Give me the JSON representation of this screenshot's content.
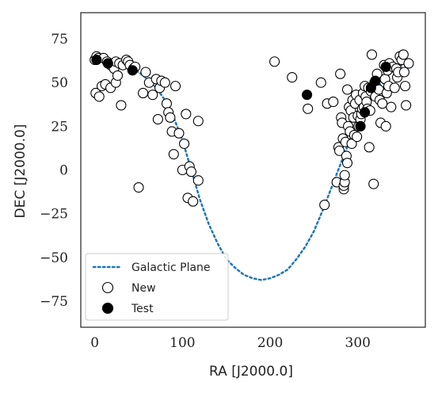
{
  "chart_data": {
    "type": "scatter",
    "xlabel": "RA [J2000.0]",
    "ylabel": "DEC [J2000.0]",
    "xlim": [
      -16,
      377
    ],
    "ylim": [
      -90,
      90
    ],
    "xticks": [
      0,
      100,
      200,
      300
    ],
    "yticks": [
      -75,
      -50,
      -25,
      0,
      25,
      50,
      75
    ],
    "grid": false,
    "legend_position": "lower-left",
    "colors": {
      "plane": "#1f77b4",
      "new_face": "#ffffff",
      "new_edge": "#000000",
      "test": "#000000"
    },
    "series": [
      {
        "name": "Galactic Plane",
        "kind": "dotted-line",
        "x": [
          0,
          10,
          20,
          30,
          40,
          50,
          60,
          70,
          80,
          90,
          100,
          110,
          120,
          130,
          140,
          150,
          160,
          170,
          180,
          190,
          200,
          210,
          220,
          230,
          240,
          250,
          260,
          270,
          280,
          290,
          300,
          310,
          320,
          330,
          340,
          350,
          360
        ],
        "y": [
          62,
          62,
          61,
          60,
          58,
          56,
          52,
          47,
          40,
          30,
          17,
          0,
          -17,
          -31,
          -42,
          -51,
          -56,
          -60,
          -62,
          -63,
          -62,
          -60,
          -57,
          -51,
          -44,
          -35,
          -23,
          -10,
          3,
          16,
          28,
          38,
          46,
          52,
          57,
          60,
          62
        ]
      },
      {
        "name": "New",
        "kind": "open-circle",
        "points": [
          [
            0,
            63
          ],
          [
            2,
            65
          ],
          [
            4,
            64
          ],
          [
            10,
            64
          ],
          [
            14,
            62
          ],
          [
            18,
            60
          ],
          [
            22,
            58
          ],
          [
            24,
            62
          ],
          [
            28,
            61
          ],
          [
            32,
            60
          ],
          [
            36,
            63
          ],
          [
            38,
            62
          ],
          [
            40,
            60
          ],
          [
            44,
            58
          ],
          [
            46,
            59
          ],
          [
            1,
            44
          ],
          [
            5,
            42
          ],
          [
            8,
            48
          ],
          [
            12,
            49
          ],
          [
            18,
            47
          ],
          [
            24,
            50
          ],
          [
            26,
            54
          ],
          [
            30,
            37
          ],
          [
            55,
            44
          ],
          [
            58,
            56
          ],
          [
            62,
            50
          ],
          [
            66,
            43
          ],
          [
            70,
            52
          ],
          [
            72,
            29
          ],
          [
            74,
            47
          ],
          [
            76,
            51
          ],
          [
            80,
            50
          ],
          [
            82,
            38
          ],
          [
            84,
            33
          ],
          [
            86,
            30
          ],
          [
            88,
            22
          ],
          [
            90,
            9
          ],
          [
            92,
            48
          ],
          [
            96,
            21
          ],
          [
            100,
            0
          ],
          [
            102,
            15
          ],
          [
            104,
            32
          ],
          [
            106,
            -16
          ],
          [
            108,
            2
          ],
          [
            110,
            -1
          ],
          [
            112,
            -18
          ],
          [
            118,
            28
          ],
          [
            118,
            -6
          ],
          [
            50,
            -10
          ],
          [
            205,
            62
          ],
          [
            225,
            53
          ],
          [
            243,
            35
          ],
          [
            258,
            50
          ],
          [
            262,
            -20
          ],
          [
            265,
            38
          ],
          [
            272,
            39
          ],
          [
            276,
            -7
          ],
          [
            278,
            13
          ],
          [
            279,
            11
          ],
          [
            280,
            55
          ],
          [
            281,
            30
          ],
          [
            282,
            27
          ],
          [
            283,
            18
          ],
          [
            284,
            -11
          ],
          [
            284,
            -9
          ],
          [
            285,
            -7
          ],
          [
            285,
            -3
          ],
          [
            286,
            16
          ],
          [
            287,
            8
          ],
          [
            288,
            4
          ],
          [
            288,
            46
          ],
          [
            289,
            25
          ],
          [
            290,
            36
          ],
          [
            291,
            22
          ],
          [
            292,
            34
          ],
          [
            293,
            15
          ],
          [
            294,
            40
          ],
          [
            295,
            30
          ],
          [
            296,
            20
          ],
          [
            297,
            38
          ],
          [
            298,
            43
          ],
          [
            299,
            19
          ],
          [
            300,
            31
          ],
          [
            301,
            25
          ],
          [
            302,
            40
          ],
          [
            303,
            29
          ],
          [
            304,
            32
          ],
          [
            305,
            35
          ],
          [
            306,
            44
          ],
          [
            307,
            36
          ],
          [
            308,
            48
          ],
          [
            309,
            42
          ],
          [
            310,
            39
          ],
          [
            311,
            35
          ],
          [
            312,
            47
          ],
          [
            313,
            13
          ],
          [
            314,
            34
          ],
          [
            315,
            45
          ],
          [
            316,
            66
          ],
          [
            318,
            -8
          ],
          [
            319,
            50
          ],
          [
            320,
            42
          ],
          [
            322,
            55
          ],
          [
            324,
            46
          ],
          [
            325,
            40
          ],
          [
            326,
            27
          ],
          [
            328,
            38
          ],
          [
            330,
            60
          ],
          [
            331,
            52
          ],
          [
            332,
            25
          ],
          [
            333,
            44
          ],
          [
            334,
            57
          ],
          [
            335,
            48
          ],
          [
            336,
            61
          ],
          [
            338,
            36
          ],
          [
            340,
            59
          ],
          [
            342,
            47
          ],
          [
            344,
            58
          ],
          [
            345,
            53
          ],
          [
            346,
            56
          ],
          [
            348,
            65
          ],
          [
            350,
            63
          ],
          [
            352,
            66
          ],
          [
            353,
            56
          ],
          [
            354,
            48
          ],
          [
            355,
            37
          ],
          [
            358,
            61
          ]
        ]
      },
      {
        "name": "Test",
        "kind": "filled-circle",
        "points": [
          [
            2,
            63
          ],
          [
            15,
            61
          ],
          [
            43,
            57
          ],
          [
            242,
            43
          ],
          [
            303,
            25
          ],
          [
            308,
            33
          ],
          [
            315,
            47
          ],
          [
            320,
            51
          ],
          [
            332,
            59
          ]
        ]
      }
    ]
  }
}
